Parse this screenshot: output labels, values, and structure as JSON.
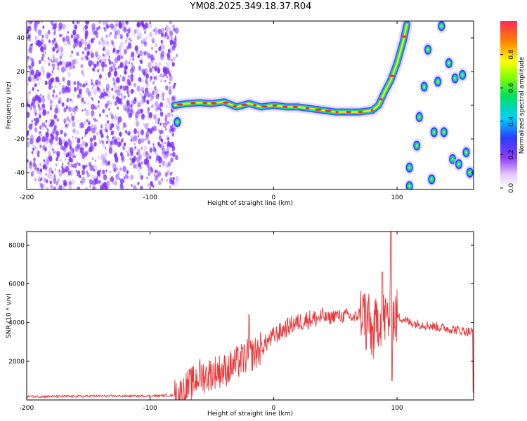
{
  "title": "YM08.2025.349.18.37.R04",
  "colors": {
    "background": "#ffffff",
    "axis": "#000000",
    "snr_line": "#e8383a",
    "scatter_noise": "#7a2cff",
    "track_core": "#ff2a2a",
    "track_mid": "#33dd33",
    "track_edge": "#2b3cff"
  },
  "chart_data": [
    {
      "type": "heatmap",
      "name": "spectrogram",
      "xlabel": "Height of straight line (km)",
      "ylabel": "Frequency (Hz)",
      "xlim": [
        -200,
        162
      ],
      "ylim": [
        -50,
        50
      ],
      "x_ticks": [
        -200,
        -100,
        0,
        100
      ],
      "x_tick_labels": [
        "-200",
        "-100",
        "0",
        "100"
      ],
      "y_ticks": [
        -40,
        -20,
        0,
        20,
        40
      ],
      "y_tick_labels": [
        "-40",
        "-20",
        "0",
        "20",
        "40"
      ],
      "noise_region_x": [
        -200,
        -78
      ],
      "track": {
        "x": [
          -80,
          -70,
          -60,
          -50,
          -40,
          -30,
          -20,
          -10,
          0,
          10,
          20,
          30,
          40,
          50,
          60,
          70,
          80,
          85,
          90,
          95,
          100,
          105,
          108
        ],
        "y": [
          0,
          1,
          1.5,
          1,
          2,
          -1,
          1,
          -1,
          0,
          -1,
          -1,
          -2,
          -3,
          -4,
          -4,
          -4,
          -3,
          0,
          8,
          15,
          25,
          38,
          48
        ]
      },
      "blobs": [
        {
          "x": -78,
          "y": -10
        },
        {
          "x": 110,
          "y": -48
        },
        {
          "x": 110,
          "y": -37
        },
        {
          "x": 116,
          "y": -24
        },
        {
          "x": 118,
          "y": -7
        },
        {
          "x": 122,
          "y": 11
        },
        {
          "x": 125,
          "y": 33
        },
        {
          "x": 128,
          "y": -44
        },
        {
          "x": 130,
          "y": -16
        },
        {
          "x": 133,
          "y": 14
        },
        {
          "x": 136,
          "y": 47
        },
        {
          "x": 138,
          "y": -16
        },
        {
          "x": 142,
          "y": 25
        },
        {
          "x": 145,
          "y": -32
        },
        {
          "x": 147,
          "y": 16
        },
        {
          "x": 150,
          "y": -35
        },
        {
          "x": 153,
          "y": 18
        },
        {
          "x": 156,
          "y": -28
        },
        {
          "x": 159,
          "y": -40
        }
      ],
      "colorbar": {
        "label": "Normalized spectral amplitude",
        "range": [
          0.0,
          1.0
        ],
        "ticks": [
          0.0,
          0.2,
          0.4,
          0.6,
          0.8
        ],
        "tick_labels": [
          "0.0",
          "0.2",
          "0.4",
          "0.6",
          "0.8"
        ]
      }
    },
    {
      "type": "line",
      "name": "snr",
      "xlabel": "Height of straight line (km)",
      "ylabel": "SNR (10 * v/v)",
      "xlim": [
        -200,
        162
      ],
      "ylim": [
        0,
        8700
      ],
      "x_ticks": [
        -200,
        -100,
        0,
        100
      ],
      "x_tick_labels": [
        "-200",
        "-100",
        "0",
        "100"
      ],
      "y_ticks": [
        2000,
        4000,
        6000,
        8000
      ],
      "y_tick_labels": [
        "2000",
        "4000",
        "6000",
        "8000"
      ],
      "series": [
        {
          "name": "SNR",
          "x": [
            -200,
            -180,
            -160,
            -140,
            -120,
            -100,
            -90,
            -80,
            -75,
            -70,
            -65,
            -60,
            -55,
            -50,
            -45,
            -40,
            -35,
            -30,
            -25,
            -20,
            -15,
            -10,
            -5,
            0,
            5,
            10,
            15,
            20,
            25,
            30,
            35,
            40,
            45,
            50,
            55,
            60,
            65,
            70,
            75,
            80,
            85,
            90,
            95,
            100,
            105,
            110,
            120,
            130,
            140,
            150,
            162
          ],
          "y": [
            180,
            180,
            190,
            200,
            200,
            210,
            220,
            240,
            300,
            700,
            900,
            1300,
            1200,
            1400,
            1500,
            1500,
            1700,
            1900,
            2100,
            2300,
            2400,
            2700,
            3000,
            3300,
            3500,
            3700,
            3900,
            4000,
            4100,
            4200,
            4200,
            4300,
            4200,
            4400,
            4300,
            4400,
            4200,
            4500,
            4600,
            3300,
            4200,
            4200,
            4300,
            4300,
            4200,
            4000,
            3900,
            3800,
            3700,
            3600,
            3500
          ]
        }
      ]
    }
  ]
}
